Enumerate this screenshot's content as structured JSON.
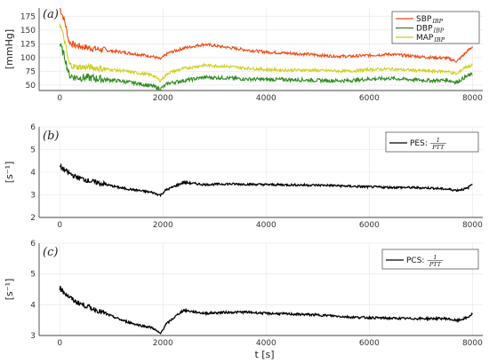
{
  "chart_data": [
    {
      "type": "line",
      "panel_label": "(a)",
      "ylabel": "[mmHg]",
      "xlim": [
        -400,
        8200
      ],
      "ylim": [
        40,
        190
      ],
      "yticks": [
        50,
        75,
        100,
        125,
        150,
        175
      ],
      "xticks": [
        0,
        2000,
        4000,
        6000,
        8000
      ],
      "grid": true,
      "legend_placement": "top-right",
      "series": [
        {
          "name": "SBP",
          "name_sub": "IBP",
          "color": "#f04a12",
          "x": [
            0,
            100,
            180,
            300,
            600,
            900,
            1200,
            1500,
            1800,
            1950,
            2100,
            2400,
            2800,
            3200,
            3600,
            4000,
            4400,
            4800,
            5200,
            5600,
            6000,
            6400,
            6800,
            7200,
            7500,
            7700,
            7850,
            8000
          ],
          "y": [
            190,
            165,
            128,
            122,
            117,
            113,
            110,
            106,
            102,
            97,
            108,
            117,
            124,
            119,
            114,
            110,
            108,
            106,
            103,
            102,
            104,
            106,
            103,
            100,
            99,
            93,
            107,
            120
          ]
        },
        {
          "name": "DBP",
          "name_sub": "IBP",
          "color": "#2e8b1f",
          "x": [
            0,
            100,
            180,
            300,
            600,
            900,
            1200,
            1500,
            1800,
            1950,
            2100,
            2400,
            2800,
            3200,
            3600,
            4000,
            4400,
            4800,
            5200,
            5600,
            6000,
            6400,
            6800,
            7200,
            7500,
            7700,
            7850,
            8000
          ],
          "y": [
            125,
            100,
            68,
            64,
            63,
            60,
            57,
            53,
            48,
            43,
            53,
            58,
            64,
            63,
            61,
            60,
            60,
            59,
            58,
            58,
            61,
            62,
            60,
            58,
            59,
            55,
            64,
            70
          ]
        },
        {
          "name": "MAP",
          "name_sub": "IBP",
          "color": "#cfcf1e",
          "x": [
            0,
            100,
            180,
            300,
            600,
            900,
            1200,
            1500,
            1800,
            1950,
            2100,
            2400,
            2800,
            3200,
            3600,
            4000,
            4400,
            4800,
            5200,
            5600,
            6000,
            6400,
            6800,
            7200,
            7500,
            7700,
            7850,
            8000
          ],
          "y": [
            163,
            128,
            88,
            83,
            82,
            79,
            76,
            72,
            68,
            58,
            72,
            80,
            86,
            84,
            81,
            78,
            77,
            77,
            76,
            75,
            78,
            79,
            77,
            75,
            75,
            70,
            82,
            86
          ]
        }
      ]
    },
    {
      "type": "line",
      "panel_label": "(b)",
      "ylabel": "[s⁻¹]",
      "xlim": [
        -400,
        8200
      ],
      "ylim": [
        2,
        6
      ],
      "yticks": [
        2,
        3,
        4,
        5,
        6
      ],
      "xticks": [
        0,
        2000,
        4000,
        6000,
        8000
      ],
      "grid": true,
      "legend_placement": "top-right",
      "series": [
        {
          "name": "PES:",
          "name_frac_num": "1",
          "name_frac_den": "PTT",
          "color": "#000000",
          "x": [
            0,
            150,
            300,
            600,
            900,
            1200,
            1500,
            1800,
            1950,
            2050,
            2300,
            2400,
            2800,
            3200,
            3600,
            4000,
            4400,
            4800,
            5200,
            5600,
            6000,
            6400,
            6800,
            7200,
            7500,
            7700,
            7900,
            8000
          ],
          "y": [
            4.25,
            4.0,
            3.8,
            3.6,
            3.45,
            3.3,
            3.2,
            3.1,
            2.98,
            3.2,
            3.45,
            3.55,
            3.45,
            3.48,
            3.47,
            3.45,
            3.44,
            3.43,
            3.42,
            3.38,
            3.35,
            3.33,
            3.32,
            3.3,
            3.25,
            3.2,
            3.28,
            3.5
          ]
        }
      ]
    },
    {
      "type": "line",
      "panel_label": "(c)",
      "ylabel": "[s⁻¹]",
      "xlabel": "t [s]",
      "xlim": [
        -400,
        8200
      ],
      "ylim": [
        3,
        6
      ],
      "yticks": [
        3,
        4,
        5,
        6
      ],
      "xticks": [
        0,
        2000,
        4000,
        6000,
        8000
      ],
      "grid": true,
      "legend_placement": "top-right",
      "series": [
        {
          "name": "PCS:",
          "name_frac_num": "1",
          "name_frac_den": "PTT",
          "color": "#000000",
          "x": [
            0,
            150,
            300,
            600,
            900,
            1200,
            1500,
            1800,
            1950,
            2050,
            2300,
            2400,
            2800,
            3200,
            3600,
            4000,
            4400,
            4800,
            5200,
            5600,
            6000,
            6400,
            6800,
            7200,
            7500,
            7700,
            7900,
            8000
          ],
          "y": [
            4.55,
            4.3,
            4.1,
            3.9,
            3.7,
            3.5,
            3.35,
            3.25,
            3.05,
            3.35,
            3.7,
            3.82,
            3.72,
            3.75,
            3.76,
            3.72,
            3.7,
            3.68,
            3.65,
            3.6,
            3.58,
            3.56,
            3.55,
            3.55,
            3.55,
            3.48,
            3.58,
            3.7
          ]
        }
      ]
    }
  ]
}
